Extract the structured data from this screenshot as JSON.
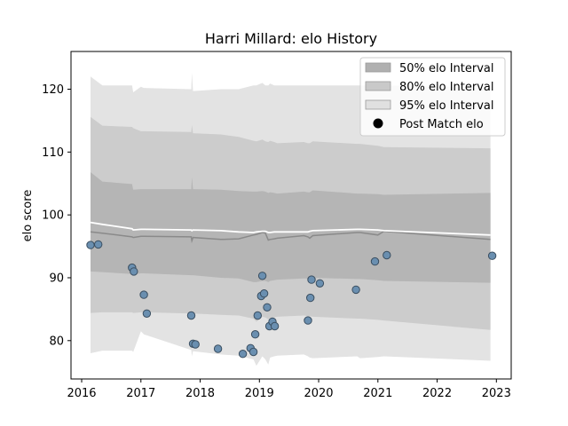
{
  "chart_data": {
    "type": "area",
    "title": "Harri Millard: elo History",
    "xlabel": "",
    "ylabel": "elo score",
    "xlim": [
      2015.82,
      2023.25
    ],
    "ylim": [
      73.9,
      126.0
    ],
    "x_ticks": [
      2016,
      2017,
      2018,
      2019,
      2020,
      2021,
      2022,
      2023
    ],
    "y_ticks": [
      80,
      90,
      100,
      110,
      120
    ],
    "grid": false,
    "legend_position": "top-right",
    "legend": [
      {
        "label": "50% elo Interval",
        "kind": "band",
        "color": "#b0b0b0"
      },
      {
        "label": "80% elo Interval",
        "kind": "band",
        "color": "#c9c9c9"
      },
      {
        "label": "95% elo Interval",
        "kind": "band",
        "color": "#e0e0e0"
      },
      {
        "label": "Post Match elo",
        "kind": "point",
        "color": "#000000"
      }
    ],
    "colors": {
      "band_50": "#b5b5b5",
      "band_80": "#cccccc",
      "band_95": "#e3e3e3",
      "mean_line": "#8a8a8a",
      "upper_line": "#ffffff",
      "points_fill": "#6a8fb0",
      "points_edge": "#3a4e60"
    },
    "x": [
      2016.15,
      2016.35,
      2016.85,
      2016.87,
      2017.0,
      2017.05,
      2017.85,
      2017.86,
      2017.88,
      2018.35,
      2018.65,
      2018.9,
      2018.95,
      2019.05,
      2019.1,
      2019.15,
      2019.18,
      2019.25,
      2019.3,
      2019.75,
      2019.82,
      2019.85,
      2019.9,
      2020.65,
      2020.7,
      2021.0,
      2021.1,
      2022.9
    ],
    "series": [
      {
        "name": "95% elo Interval",
        "lower": [
          78.0,
          78.4,
          78.4,
          78.2,
          81.5,
          81.0,
          78.5,
          77.5,
          78.3,
          77.8,
          77.6,
          77.0,
          76.0,
          77.5,
          77.0,
          76.2,
          77.3,
          77.5,
          77.6,
          77.8,
          77.5,
          77.3,
          77.2,
          77.5,
          77.2,
          77.4,
          77.5,
          76.8
        ],
        "upper": [
          122.0,
          120.6,
          120.6,
          119.5,
          120.4,
          120.2,
          120.0,
          122.6,
          119.7,
          120.0,
          120.0,
          120.6,
          120.6,
          121.0,
          120.6,
          120.6,
          120.9,
          120.6,
          120.6,
          120.6,
          120.6,
          120.6,
          120.6,
          120.6,
          120.6,
          120.6,
          120.6,
          120.2
        ]
      },
      {
        "name": "80% elo Interval",
        "lower": [
          84.4,
          84.5,
          84.5,
          84.4,
          84.5,
          84.5,
          84.3,
          84.2,
          84.3,
          84.1,
          84.0,
          83.5,
          83.0,
          83.8,
          83.7,
          83.4,
          83.6,
          83.7,
          83.8,
          84.0,
          83.9,
          83.9,
          83.8,
          83.5,
          83.5,
          83.3,
          83.2,
          81.7
        ],
        "upper": [
          115.6,
          114.2,
          114.0,
          113.8,
          113.3,
          113.3,
          113.2,
          114.3,
          113.0,
          112.8,
          112.4,
          111.8,
          111.7,
          112.0,
          111.7,
          111.6,
          111.8,
          111.6,
          111.4,
          111.6,
          111.4,
          111.4,
          111.7,
          111.3,
          111.3,
          111.0,
          110.8,
          110.6
        ]
      },
      {
        "name": "50% elo Interval",
        "lower": [
          91.0,
          90.9,
          90.6,
          90.5,
          90.7,
          90.7,
          90.4,
          90.4,
          90.4,
          90.0,
          89.9,
          89.3,
          89.3,
          89.5,
          89.5,
          89.3,
          89.5,
          89.6,
          89.7,
          89.9,
          89.9,
          90.0,
          90.0,
          89.8,
          89.8,
          89.6,
          89.5,
          89.2
        ],
        "upper": [
          106.8,
          105.3,
          104.9,
          104.0,
          104.1,
          104.1,
          104.1,
          106.0,
          104.1,
          104.0,
          103.8,
          103.7,
          103.7,
          103.8,
          103.7,
          103.5,
          103.6,
          103.5,
          103.4,
          103.7,
          103.6,
          103.6,
          103.9,
          103.4,
          103.4,
          103.3,
          103.2,
          103.5
        ]
      },
      {
        "name": "mean",
        "values": [
          97.3,
          97.1,
          96.5,
          96.4,
          96.6,
          96.6,
          96.5,
          95.9,
          96.4,
          96.1,
          96.2,
          96.8,
          96.9,
          97.2,
          97.1,
          96.0,
          96.1,
          96.2,
          96.3,
          96.7,
          96.5,
          96.3,
          96.7,
          97.2,
          97.2,
          96.8,
          97.4,
          96.1
        ]
      },
      {
        "name": "upper line",
        "values": [
          98.8,
          98.5,
          97.8,
          97.6,
          97.7,
          97.7,
          97.6,
          97.5,
          97.6,
          97.5,
          97.3,
          97.2,
          97.3,
          97.4,
          97.4,
          97.2,
          97.2,
          97.3,
          97.3,
          97.3,
          97.3,
          97.4,
          97.5,
          97.7,
          97.7,
          97.6,
          97.5,
          96.8
        ]
      }
    ],
    "points": {
      "name": "Post Match elo",
      "x": [
        2016.15,
        2016.28,
        2016.85,
        2016.88,
        2017.05,
        2017.1,
        2017.85,
        2017.88,
        2017.92,
        2018.3,
        2018.72,
        2018.85,
        2018.9,
        2018.93,
        2018.97,
        2019.03,
        2019.05,
        2019.08,
        2019.13,
        2019.17,
        2019.22,
        2019.26,
        2019.82,
        2019.86,
        2019.88,
        2020.02,
        2020.63,
        2020.95,
        2021.15,
        2022.93
      ],
      "y": [
        95.2,
        95.3,
        91.6,
        91.0,
        87.3,
        84.3,
        84.0,
        79.5,
        79.4,
        78.7,
        77.9,
        78.8,
        78.2,
        81.0,
        84.0,
        87.1,
        90.3,
        87.5,
        85.3,
        82.3,
        83.0,
        82.3,
        83.2,
        86.8,
        89.7,
        89.1,
        88.1,
        92.6,
        93.6,
        93.5
      ]
    }
  }
}
